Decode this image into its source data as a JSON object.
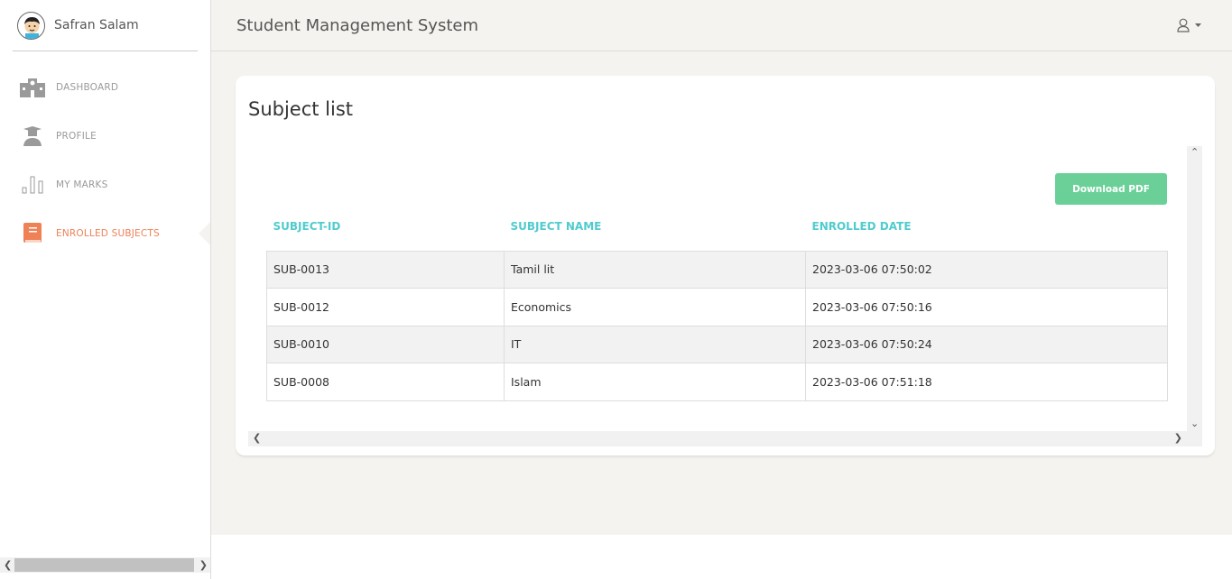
{
  "sidebar": {
    "user_name": "Safran Salam",
    "items": [
      {
        "label": "DASHBOARD",
        "icon": "school-icon"
      },
      {
        "label": "PROFILE",
        "icon": "graduate-icon"
      },
      {
        "label": "MY MARKS",
        "icon": "bar-chart-icon"
      },
      {
        "label": "ENROLLED SUBJECTS",
        "icon": "book-icon",
        "active": true
      }
    ]
  },
  "header": {
    "title": "Student Management System",
    "user_icon": "user-icon"
  },
  "card": {
    "title": "Subject list",
    "download_label": "Download PDF",
    "columns": [
      "SUBJECT-ID",
      "SUBJECT NAME",
      "ENROLLED DATE"
    ],
    "rows": [
      [
        "SUB-0013",
        "Tamil lit",
        "2023-03-06 07:50:02"
      ],
      [
        "SUB-0012",
        "Economics",
        "2023-03-06 07:50:16"
      ],
      [
        "SUB-0010",
        "IT",
        "2023-03-06 07:50:24"
      ],
      [
        "SUB-0008",
        "Islam",
        "2023-03-06 07:51:18"
      ]
    ]
  },
  "colors": {
    "accent": "#ef8157",
    "teal": "#51cbce",
    "success": "#6bd098"
  }
}
